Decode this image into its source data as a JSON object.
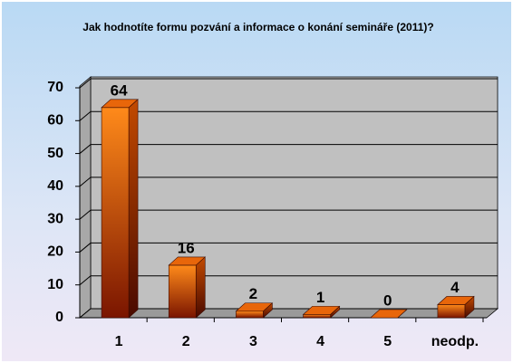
{
  "chart_data": {
    "type": "bar3d",
    "title": "Jak hodnotíte formu pozvání a informace o konání semináře (2011)?",
    "categories": [
      "1",
      "2",
      "3",
      "4",
      "5",
      "neodp."
    ],
    "values": [
      64,
      16,
      2,
      1,
      0,
      4
    ],
    "color": "#e8660a",
    "ylim": [
      0,
      70
    ],
    "yticks": [
      0,
      10,
      20,
      30,
      40,
      50,
      60,
      70
    ],
    "grid": true
  }
}
